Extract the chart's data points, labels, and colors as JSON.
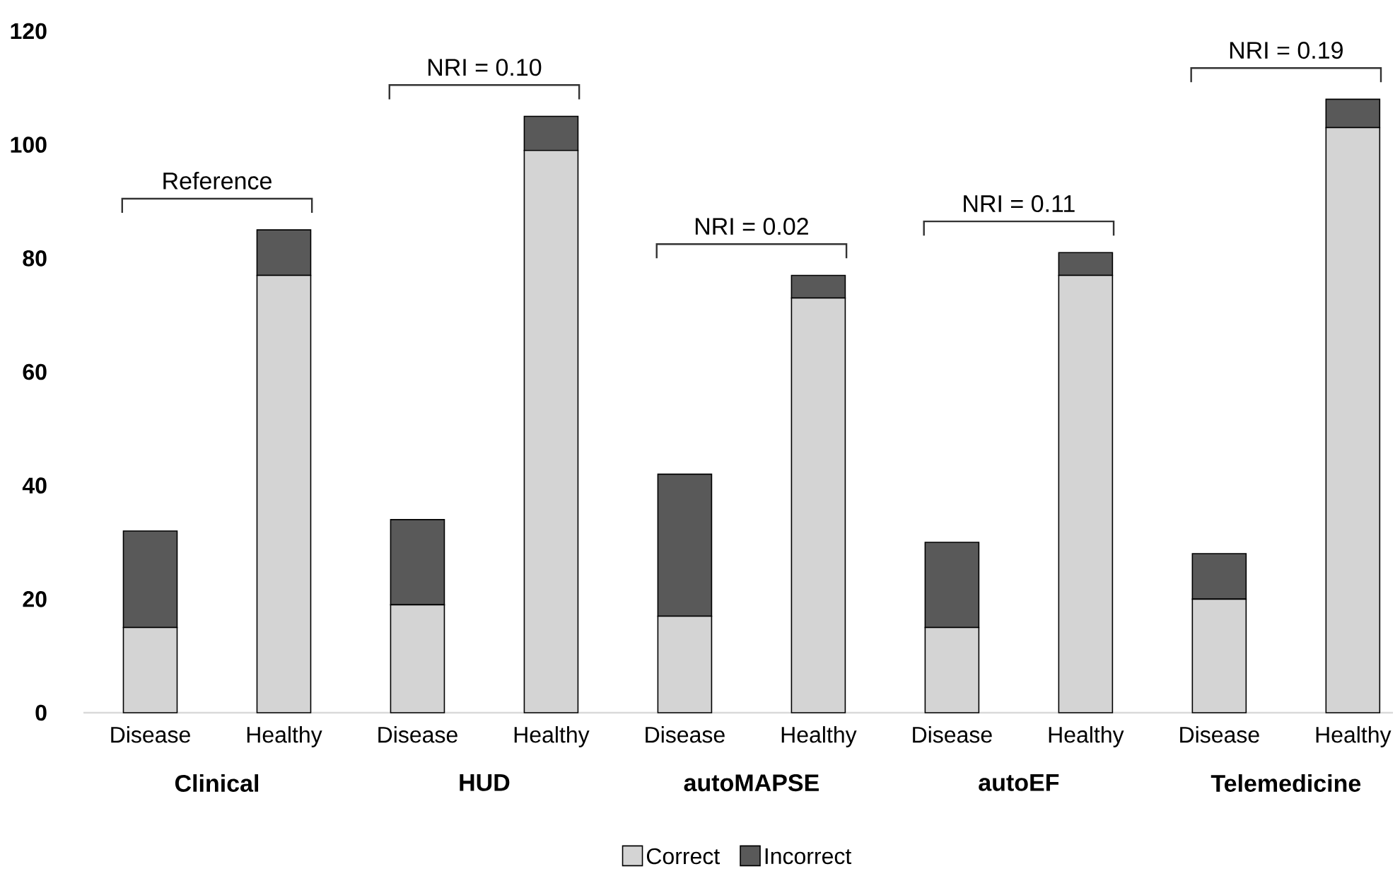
{
  "chart_data": {
    "type": "bar",
    "stacked": true,
    "categories": [
      "Disease",
      "Healthy",
      "Disease",
      "Healthy",
      "Disease",
      "Healthy",
      "Disease",
      "Healthy",
      "Disease",
      "Healthy"
    ],
    "series": [
      {
        "name": "Correct",
        "color": "#d4d4d4",
        "values": [
          15,
          77,
          19,
          99,
          17,
          73,
          15,
          77,
          20,
          103
        ]
      },
      {
        "name": "Incorrect",
        "color": "#595959",
        "values": [
          17,
          8,
          15,
          6,
          25,
          4,
          15,
          4,
          8,
          5
        ]
      }
    ],
    "ylim": [
      0,
      120
    ],
    "yticks": [
      0,
      20,
      40,
      60,
      80,
      100,
      120
    ],
    "grid": false,
    "legend": "bottom",
    "annotations": [
      "Clinical",
      "HUD",
      "autoMAPSE",
      "autoEF",
      "Telemedicine",
      "Reference",
      "NRI = 0.10",
      "NRI = 0.02",
      "NRI = 0.11",
      "NRI = 0.19"
    ]
  }
}
